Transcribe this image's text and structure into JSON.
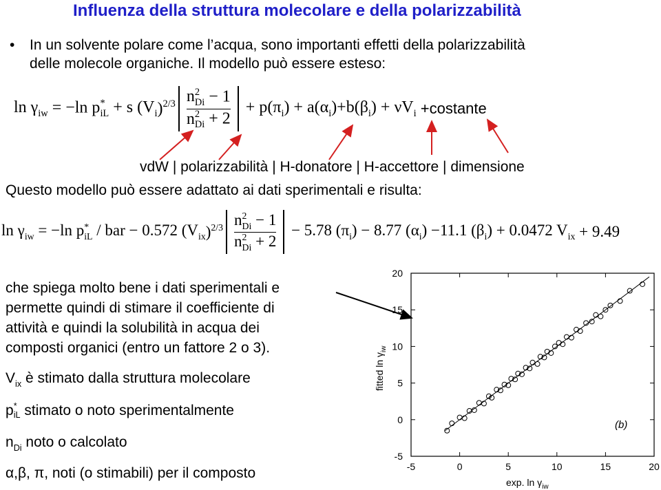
{
  "title": "Influenza della struttura molecolare e della polarizzabilità",
  "bullet": {
    "lines": [
      "In un solvente polare come l’acqua, sono importanti effetti della polarizzabilità",
      "delle molecole organiche. Il modello può essere esteso:"
    ]
  },
  "equation1": [
    {
      "t": "ln γ",
      "sub": "iw"
    },
    {
      "t": " = −ln p",
      "sup": "*",
      "sub": "iL"
    },
    {
      "t": " + s (V",
      "sub": "i"
    },
    {
      "t": ")",
      "sup": "2/3"
    },
    {
      "frac": {
        "num": [
          {
            "t": "n",
            "sup": "2",
            "sub": "Di"
          },
          {
            "t": " − 1"
          }
        ],
        "den": [
          {
            "t": "n",
            "sup": "2",
            "sub": "Di"
          },
          {
            "t": " + 2"
          }
        ]
      }
    },
    {
      "t": " + p(π",
      "sub": "i"
    },
    {
      "t": ") + a(α",
      "sub": "i"
    },
    {
      "t": ")+b(β",
      "sub": "i"
    },
    {
      "t": ") + νV",
      "sub": "i"
    },
    {
      "t": " +costante"
    }
  ],
  "term_labels": "vdW | polarizzabilità | H-donatore | H-accettore | dimensione",
  "adapted": "Questo modello può essere adattato ai dati sperimentali e risulta:",
  "equation2": [
    {
      "t": "ln γ",
      "sub": "iw"
    },
    {
      "t": " = −ln p",
      "sup": "*",
      "sub": "iL"
    },
    {
      "t": " / bar − 0.572 (V",
      "sub": "ix"
    },
    {
      "t": ")",
      "sup": "2/3"
    },
    {
      "frac": {
        "num": [
          {
            "t": "n",
            "sup": "2",
            "sub": "Di"
          },
          {
            "t": " − 1"
          }
        ],
        "den": [
          {
            "t": "n",
            "sup": "2",
            "sub": "Di"
          },
          {
            "t": " + 2"
          }
        ]
      }
    },
    {
      "t": " − 5.78 (π",
      "sub": "i"
    },
    {
      "t": ") − 8.77 (α",
      "sub": "i"
    },
    {
      "t": ") −11.1 (β",
      "sub": "i"
    },
    {
      "t": ") + 0.0472 V",
      "sub": "ix"
    },
    {
      "t": " + 9.49"
    }
  ],
  "explanation": {
    "lines": [
      "che spiega molto bene i dati sperimentali e",
      "permette quindi di stimare il coefficiente di",
      "attività e quindi la solubilità in acqua dei",
      "composti organici (entro un fattore 2 o 3)."
    ]
  },
  "notes": [
    [
      {
        "t": "V",
        "sub": "ix"
      },
      {
        "t": " è stimato dalla struttura molecolare"
      }
    ],
    [
      {
        "t": "p",
        "sup": "*",
        "sub": "iL"
      },
      {
        "t": " stimato o noto sperimentalmente"
      }
    ],
    [
      {
        "t": "n",
        "sub": "Di"
      },
      {
        "t": " noto o calcolato"
      }
    ],
    [
      {
        "t": "α,β, π, noti (o stimabili) per il composto"
      }
    ]
  ],
  "chart_data": {
    "type": "scatter",
    "x_label": {
      "t": "exp. ln γ",
      "sub": "iw"
    },
    "y_label": {
      "t": "fitted ln γ",
      "sub": "iw"
    },
    "annotation": "(b)",
    "xlim": [
      -5,
      20
    ],
    "ylim": [
      -5,
      20
    ],
    "xticks": [
      -5,
      0,
      5,
      10,
      15,
      20
    ],
    "yticks": [
      -5,
      0,
      5,
      10,
      15,
      20
    ],
    "color": "#000000",
    "x": [
      -1.3,
      -0.8,
      0,
      0.5,
      1,
      1.5,
      2,
      2.5,
      3,
      3.3,
      3.8,
      4.2,
      4.6,
      5,
      5.3,
      5.7,
      6,
      6.4,
      6.8,
      7.2,
      7.5,
      8,
      8.3,
      8.7,
      9,
      9.4,
      9.8,
      10.2,
      10.6,
      11,
      11.5,
      12,
      12.4,
      13,
      13.6,
      14,
      14.5,
      15,
      15.5,
      16.5,
      17.5,
      18.8
    ],
    "y": [
      -1.5,
      -0.5,
      0.3,
      0.2,
      1.2,
      1.3,
      2.3,
      2.2,
      3.2,
      3.0,
      4.1,
      4.0,
      4.8,
      4.7,
      5.6,
      5.5,
      6.3,
      6.2,
      7.1,
      7.0,
      7.8,
      7.6,
      8.6,
      8.5,
      9.3,
      9.1,
      10.0,
      10.5,
      10.3,
      11.3,
      11.2,
      12.3,
      12.1,
      13.2,
      13.4,
      14.3,
      14.1,
      15.0,
      15.6,
      16.2,
      17.6,
      18.5
    ],
    "fit": {
      "x": [
        -1.5,
        19.5
      ],
      "y": [
        -1.5,
        19.5
      ]
    }
  }
}
